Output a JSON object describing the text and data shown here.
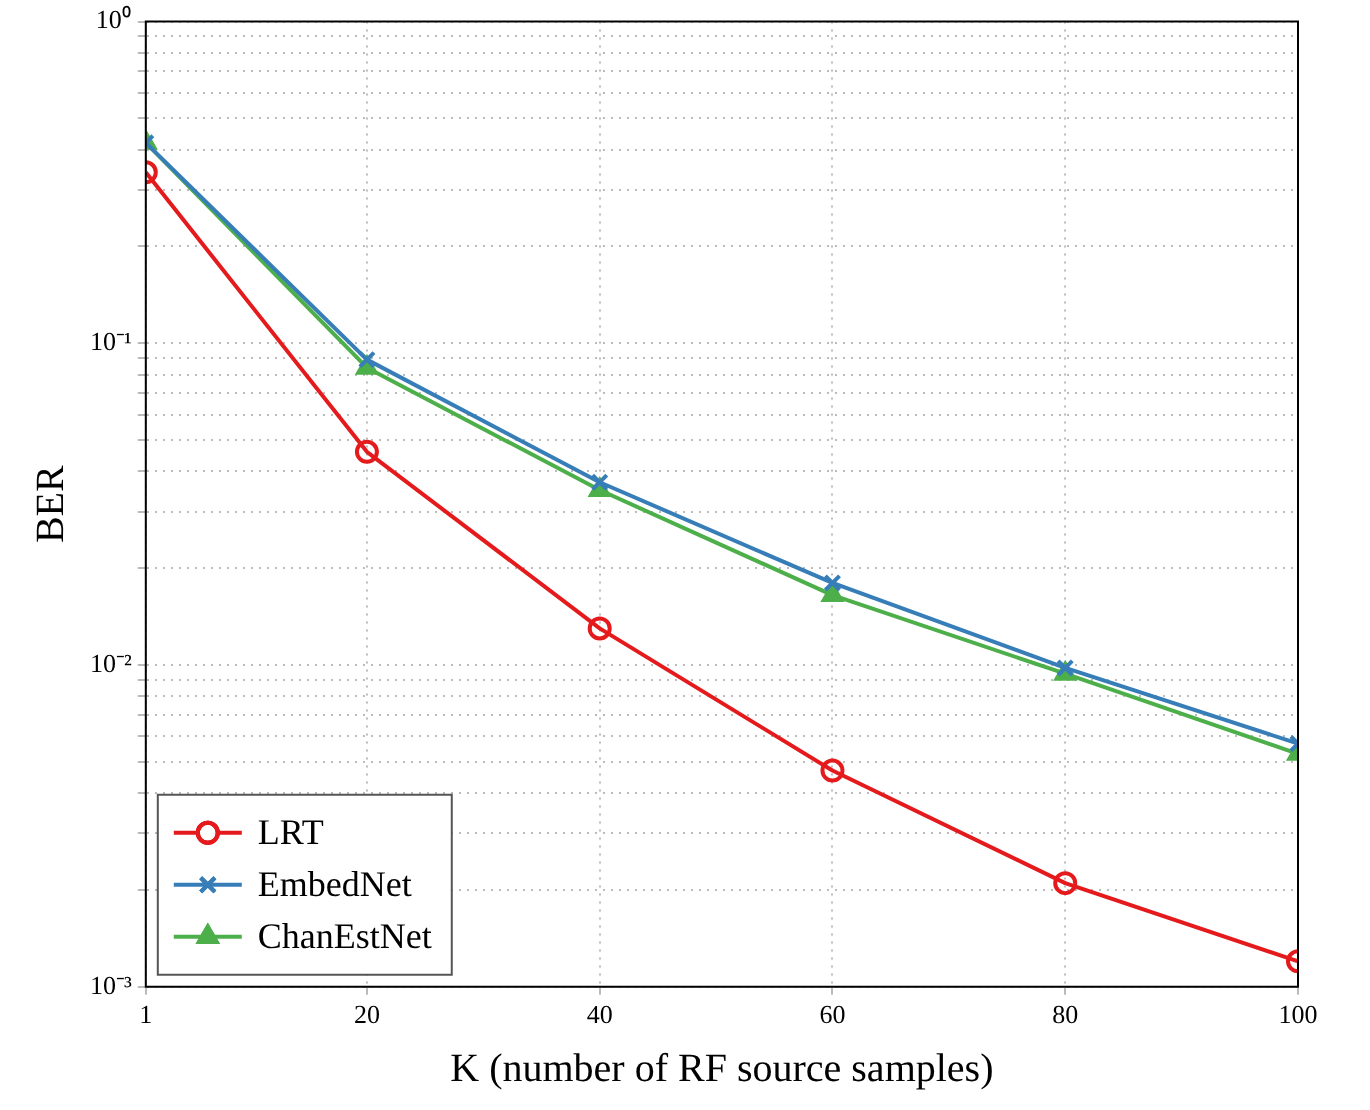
{
  "chart_data": {
    "type": "line",
    "xlabel": "K (number of RF source samples)",
    "ylabel": "BER",
    "log": "y",
    "grid": true,
    "legend": "bottom left",
    "x": [
      1,
      20,
      40,
      60,
      80,
      100
    ],
    "xlim": [
      1,
      100
    ],
    "xticks": [
      1,
      20,
      40,
      60,
      80,
      100
    ],
    "ylim": [
      0.001,
      1
    ],
    "yticks": [
      {
        "value": 0.001,
        "label": "10⁻³"
      },
      {
        "value": 0.01,
        "label": "10⁻²"
      },
      {
        "value": 0.1,
        "label": "10⁻¹"
      },
      {
        "value": 1,
        "label": "10⁰"
      }
    ],
    "series": [
      {
        "name": "LRT",
        "color": "#e41a1c",
        "marker": "circle",
        "values": [
          0.34,
          0.046,
          0.013,
          0.0047,
          0.0021,
          0.0012
        ]
      },
      {
        "name": "EmbedNet",
        "color": "#377eb8",
        "marker": "cross",
        "values": [
          0.42,
          0.089,
          0.037,
          0.018,
          0.0098,
          0.0057
        ]
      },
      {
        "name": "ChanEstNet",
        "color": "#4daf4a",
        "marker": "triangle",
        "values": [
          0.42,
          0.084,
          0.035,
          0.0165,
          0.0094,
          0.0053
        ]
      }
    ]
  }
}
